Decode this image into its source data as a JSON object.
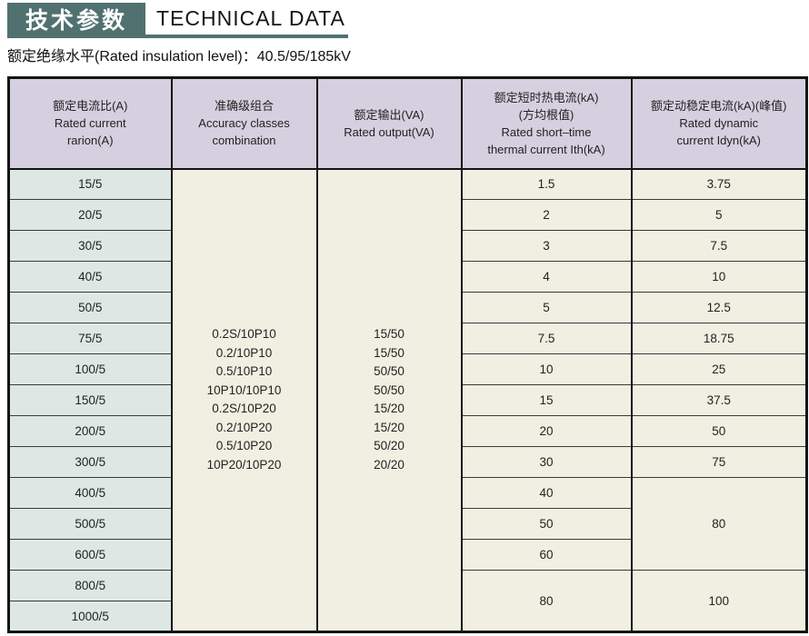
{
  "header": {
    "title_cn": "技术参数",
    "title_en": "TECHNICAL DATA",
    "subtitle": "额定绝缘水平(Rated insulation level)：40.5/95/185kV"
  },
  "colors": {
    "accent_teal": "#517170",
    "table_header_bg": "#d5d0df",
    "ratio_column_bg": "#dde8e4",
    "body_cell_bg": "#f0efe2",
    "border": "#141414"
  },
  "table": {
    "columns": [
      {
        "id": "ratio",
        "lines": [
          "额定电流比(A)",
          "Rated current",
          "rarion(A)"
        ]
      },
      {
        "id": "accuracy",
        "lines": [
          "准确级组合",
          "Accuracy classes",
          "combination"
        ]
      },
      {
        "id": "output",
        "lines": [
          "额定输出(VA)",
          "Rated output(VA)"
        ]
      },
      {
        "id": "thermal",
        "lines": [
          "额定短时热电流(kA)",
          "(方均根值)",
          "Rated short–time",
          "thermal current Ith(kA)"
        ]
      },
      {
        "id": "dynamic",
        "lines": [
          "额定动稳定电流(kA)(峰值)",
          "Rated dynamic",
          "current Idyn(kA)"
        ]
      }
    ],
    "current_ratios": [
      "15/5",
      "20/5",
      "30/5",
      "40/5",
      "50/5",
      "75/5",
      "100/5",
      "150/5",
      "200/5",
      "300/5",
      "400/5",
      "500/5",
      "600/5",
      "800/5",
      "1000/5"
    ],
    "accuracy_classes": [
      "0.2S/10P10",
      "0.2/10P10",
      "0.5/10P10",
      "10P10/10P10",
      "0.2S/10P20",
      "0.2/10P20",
      "0.5/10P20",
      "10P20/10P20"
    ],
    "rated_output": [
      "15/50",
      "15/50",
      "50/50",
      "50/50",
      "15/20",
      "15/20",
      "50/20",
      "20/20"
    ],
    "thermal_current": [
      {
        "value": "1.5",
        "rows": 1
      },
      {
        "value": "2",
        "rows": 1
      },
      {
        "value": "3",
        "rows": 1
      },
      {
        "value": "4",
        "rows": 1
      },
      {
        "value": "5",
        "rows": 1
      },
      {
        "value": "7.5",
        "rows": 1
      },
      {
        "value": "10",
        "rows": 1
      },
      {
        "value": "15",
        "rows": 1
      },
      {
        "value": "20",
        "rows": 1
      },
      {
        "value": "30",
        "rows": 1
      },
      {
        "value": "40",
        "rows": 1
      },
      {
        "value": "50",
        "rows": 1
      },
      {
        "value": "60",
        "rows": 1
      },
      {
        "value": "80",
        "rows": 2
      }
    ],
    "dynamic_current": [
      {
        "value": "3.75",
        "rows": 1
      },
      {
        "value": "5",
        "rows": 1
      },
      {
        "value": "7.5",
        "rows": 1
      },
      {
        "value": "10",
        "rows": 1
      },
      {
        "value": "12.5",
        "rows": 1
      },
      {
        "value": "18.75",
        "rows": 1
      },
      {
        "value": "25",
        "rows": 1
      },
      {
        "value": "37.5",
        "rows": 1
      },
      {
        "value": "50",
        "rows": 1
      },
      {
        "value": "75",
        "rows": 1
      },
      {
        "value": "80",
        "rows": 3
      },
      {
        "value": "100",
        "rows": 2
      }
    ]
  }
}
